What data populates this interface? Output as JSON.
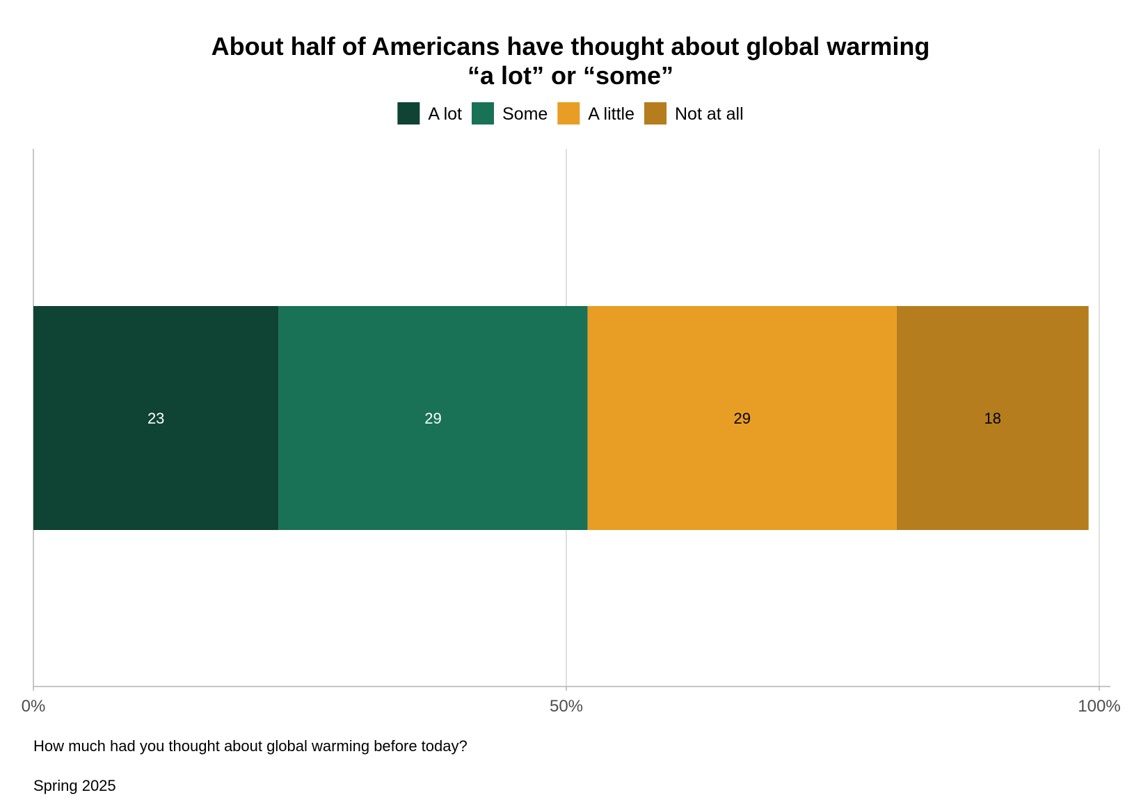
{
  "chart_data": {
    "type": "bar",
    "orientation": "horizontal",
    "stacked": true,
    "title_lines": [
      "About half of Americans have thought about global warming",
      "“a lot” or “some”"
    ],
    "categories": [
      "Spring 2025"
    ],
    "series": [
      {
        "name": "A lot",
        "values": [
          23
        ],
        "color": "#0f4333",
        "label_color": "#ffffff"
      },
      {
        "name": "Some",
        "values": [
          29
        ],
        "color": "#197156",
        "label_color": "#ffffff"
      },
      {
        "name": "A little",
        "values": [
          29
        ],
        "color": "#e89e24",
        "label_color": "#000000"
      },
      {
        "name": "Not at all",
        "values": [
          18
        ],
        "color": "#b57d1d",
        "label_color": "#000000"
      }
    ],
    "x_ticks": [
      "0%",
      "50%",
      "100%"
    ],
    "xlim": [
      0,
      100
    ],
    "grid": "vertical",
    "legend_position": "top",
    "xlabel": "",
    "ylabel": ""
  },
  "captions": {
    "question": "How much had you thought about global warming before today?",
    "period": "Spring 2025"
  },
  "colors": {
    "gridline": "#d6d6d6",
    "axis": "#b3b3b3",
    "tick_text": "#4d4d4d"
  }
}
